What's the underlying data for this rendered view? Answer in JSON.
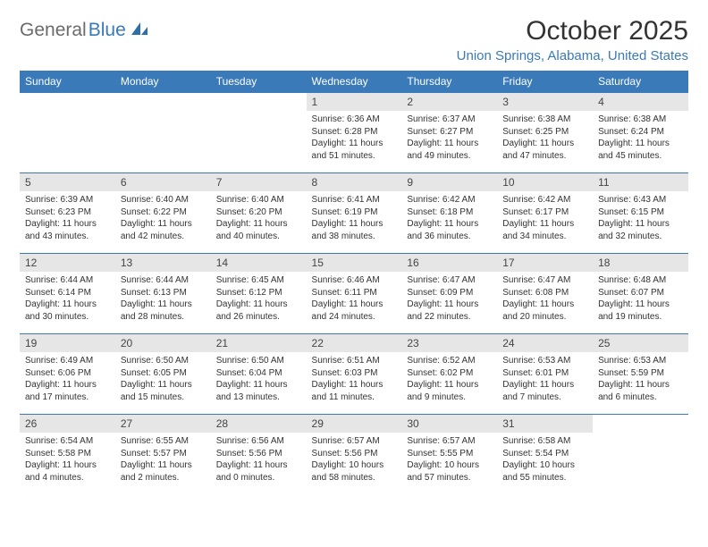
{
  "logo": {
    "text1": "General",
    "text2": "Blue"
  },
  "title": "October 2025",
  "location": "Union Springs, Alabama, United States",
  "colors": {
    "header_bg": "#3a7ab8",
    "header_text": "#ffffff",
    "daynum_bg": "#e6e6e6",
    "border": "#3a7ab8",
    "logo_gray": "#6b6b6b",
    "logo_blue": "#3a7ab8"
  },
  "dayNames": [
    "Sunday",
    "Monday",
    "Tuesday",
    "Wednesday",
    "Thursday",
    "Friday",
    "Saturday"
  ],
  "weeks": [
    [
      null,
      null,
      null,
      {
        "n": "1",
        "sr": "6:36 AM",
        "ss": "6:28 PM",
        "dl": "11 hours and 51 minutes."
      },
      {
        "n": "2",
        "sr": "6:37 AM",
        "ss": "6:27 PM",
        "dl": "11 hours and 49 minutes."
      },
      {
        "n": "3",
        "sr": "6:38 AM",
        "ss": "6:25 PM",
        "dl": "11 hours and 47 minutes."
      },
      {
        "n": "4",
        "sr": "6:38 AM",
        "ss": "6:24 PM",
        "dl": "11 hours and 45 minutes."
      }
    ],
    [
      {
        "n": "5",
        "sr": "6:39 AM",
        "ss": "6:23 PM",
        "dl": "11 hours and 43 minutes."
      },
      {
        "n": "6",
        "sr": "6:40 AM",
        "ss": "6:22 PM",
        "dl": "11 hours and 42 minutes."
      },
      {
        "n": "7",
        "sr": "6:40 AM",
        "ss": "6:20 PM",
        "dl": "11 hours and 40 minutes."
      },
      {
        "n": "8",
        "sr": "6:41 AM",
        "ss": "6:19 PM",
        "dl": "11 hours and 38 minutes."
      },
      {
        "n": "9",
        "sr": "6:42 AM",
        "ss": "6:18 PM",
        "dl": "11 hours and 36 minutes."
      },
      {
        "n": "10",
        "sr": "6:42 AM",
        "ss": "6:17 PM",
        "dl": "11 hours and 34 minutes."
      },
      {
        "n": "11",
        "sr": "6:43 AM",
        "ss": "6:15 PM",
        "dl": "11 hours and 32 minutes."
      }
    ],
    [
      {
        "n": "12",
        "sr": "6:44 AM",
        "ss": "6:14 PM",
        "dl": "11 hours and 30 minutes."
      },
      {
        "n": "13",
        "sr": "6:44 AM",
        "ss": "6:13 PM",
        "dl": "11 hours and 28 minutes."
      },
      {
        "n": "14",
        "sr": "6:45 AM",
        "ss": "6:12 PM",
        "dl": "11 hours and 26 minutes."
      },
      {
        "n": "15",
        "sr": "6:46 AM",
        "ss": "6:11 PM",
        "dl": "11 hours and 24 minutes."
      },
      {
        "n": "16",
        "sr": "6:47 AM",
        "ss": "6:09 PM",
        "dl": "11 hours and 22 minutes."
      },
      {
        "n": "17",
        "sr": "6:47 AM",
        "ss": "6:08 PM",
        "dl": "11 hours and 20 minutes."
      },
      {
        "n": "18",
        "sr": "6:48 AM",
        "ss": "6:07 PM",
        "dl": "11 hours and 19 minutes."
      }
    ],
    [
      {
        "n": "19",
        "sr": "6:49 AM",
        "ss": "6:06 PM",
        "dl": "11 hours and 17 minutes."
      },
      {
        "n": "20",
        "sr": "6:50 AM",
        "ss": "6:05 PM",
        "dl": "11 hours and 15 minutes."
      },
      {
        "n": "21",
        "sr": "6:50 AM",
        "ss": "6:04 PM",
        "dl": "11 hours and 13 minutes."
      },
      {
        "n": "22",
        "sr": "6:51 AM",
        "ss": "6:03 PM",
        "dl": "11 hours and 11 minutes."
      },
      {
        "n": "23",
        "sr": "6:52 AM",
        "ss": "6:02 PM",
        "dl": "11 hours and 9 minutes."
      },
      {
        "n": "24",
        "sr": "6:53 AM",
        "ss": "6:01 PM",
        "dl": "11 hours and 7 minutes."
      },
      {
        "n": "25",
        "sr": "6:53 AM",
        "ss": "5:59 PM",
        "dl": "11 hours and 6 minutes."
      }
    ],
    [
      {
        "n": "26",
        "sr": "6:54 AM",
        "ss": "5:58 PM",
        "dl": "11 hours and 4 minutes."
      },
      {
        "n": "27",
        "sr": "6:55 AM",
        "ss": "5:57 PM",
        "dl": "11 hours and 2 minutes."
      },
      {
        "n": "28",
        "sr": "6:56 AM",
        "ss": "5:56 PM",
        "dl": "11 hours and 0 minutes."
      },
      {
        "n": "29",
        "sr": "6:57 AM",
        "ss": "5:56 PM",
        "dl": "10 hours and 58 minutes."
      },
      {
        "n": "30",
        "sr": "6:57 AM",
        "ss": "5:55 PM",
        "dl": "10 hours and 57 minutes."
      },
      {
        "n": "31",
        "sr": "6:58 AM",
        "ss": "5:54 PM",
        "dl": "10 hours and 55 minutes."
      },
      null
    ]
  ],
  "labels": {
    "sunrise": "Sunrise:",
    "sunset": "Sunset:",
    "daylight": "Daylight:"
  }
}
